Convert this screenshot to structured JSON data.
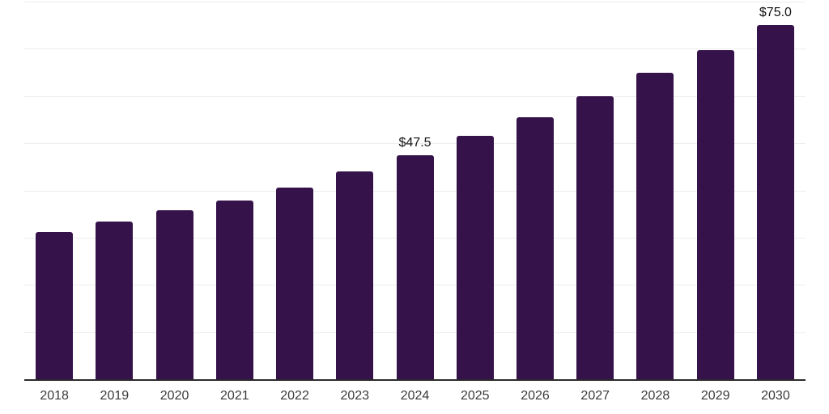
{
  "chart_data": {
    "type": "bar",
    "categories": [
      "2018",
      "2019",
      "2020",
      "2021",
      "2022",
      "2023",
      "2024",
      "2025",
      "2026",
      "2027",
      "2028",
      "2029",
      "2030"
    ],
    "values": [
      31.1,
      33.4,
      35.8,
      37.9,
      40.6,
      44.1,
      47.5,
      51.5,
      55.5,
      60.0,
      64.9,
      69.8,
      75.0
    ],
    "data_labels": [
      null,
      null,
      null,
      null,
      null,
      null,
      "$47.5",
      null,
      null,
      null,
      null,
      null,
      "$75.0"
    ],
    "title": "",
    "xlabel": "",
    "ylabel": "",
    "ylim": [
      0,
      80
    ],
    "gridline_step": 10,
    "grid": "horizontal",
    "legend": "none",
    "colors": {
      "bar": "#35124A",
      "gridline": "#ededed",
      "axis_line": "#2b2b2b",
      "tick_label": "#3a3a3a",
      "data_label": "#111111",
      "background": "#ffffff"
    }
  }
}
